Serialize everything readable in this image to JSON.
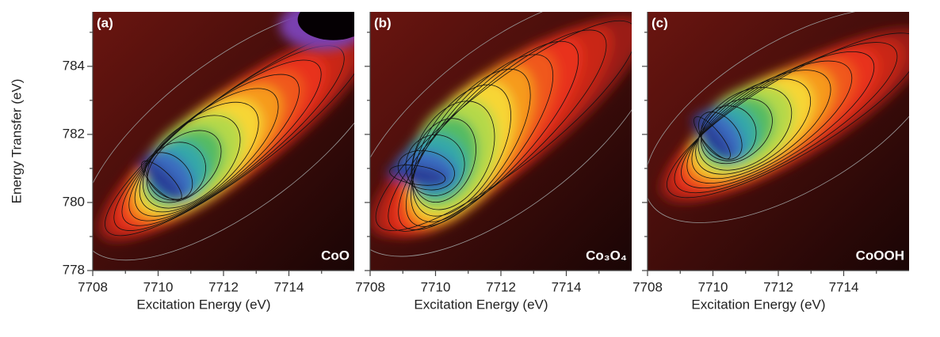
{
  "chart_data": [
    {
      "type": "heatmap",
      "panel_label": "(a)",
      "sample": "CoO",
      "xlabel": "Excitation Energy (eV)",
      "ylabel": "Energy Transfer (eV)",
      "xlim": [
        7708,
        7716
      ],
      "xticks": [
        7708,
        7710,
        7712,
        7714
      ],
      "ylim": [
        778,
        785.6
      ],
      "yticks": [
        778,
        780,
        782,
        784
      ],
      "show_ytick_labels": true
    },
    {
      "type": "heatmap",
      "panel_label": "(b)",
      "sample": "Co₃O₄",
      "xlabel": "Excitation Energy (eV)",
      "xlim": [
        7708,
        7716
      ],
      "xticks": [
        7708,
        7710,
        7712,
        7714
      ],
      "ylim": [
        778,
        785.6
      ],
      "yticks": [
        778,
        780,
        782,
        784
      ],
      "show_ytick_labels": false
    },
    {
      "type": "heatmap",
      "panel_label": "(c)",
      "sample": "CoOOH",
      "xlabel": "Excitation Energy (eV)",
      "xlim": [
        7708,
        7716
      ],
      "xticks": [
        7708,
        7710,
        7712,
        7714
      ],
      "ylim": [
        778,
        785.6
      ],
      "yticks": [
        778,
        780,
        782,
        784
      ],
      "show_ytick_labels": false
    }
  ]
}
